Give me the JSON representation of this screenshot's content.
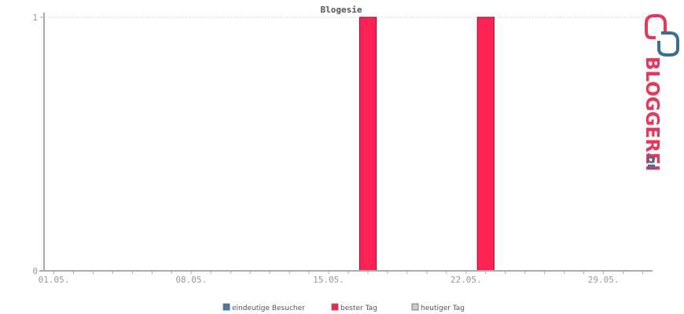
{
  "chart_data": {
    "type": "bar",
    "title": "Blogesie",
    "xlabel": "",
    "ylabel": "",
    "ylim": [
      0,
      1
    ],
    "y_ticks": [
      "0",
      "1"
    ],
    "x_tick_labels": [
      "01.05.",
      "08.05.",
      "15.05.",
      "22.05.",
      "29.05."
    ],
    "x_tick_days": [
      1,
      8,
      15,
      22,
      29
    ],
    "day_range": [
      0.5,
      31.5
    ],
    "grid": "dotted line at y=1",
    "legend_position": "bottom-center",
    "series": [
      {
        "name": "eindeutige Besucher",
        "color": "#3a7fb0",
        "points": []
      },
      {
        "name": "bester Tag",
        "color": "#ff2255",
        "points": [
          {
            "day": 17,
            "value": 1
          },
          {
            "day": 23,
            "value": 1
          }
        ]
      },
      {
        "name": "heutiger Tag",
        "color": "#cccccc",
        "points": []
      }
    ]
  },
  "logo": {
    "text": "BLOGGEREI",
    "suffix": ".DE",
    "primary_color": "#e8365b",
    "secondary_color": "#3b6e8f"
  }
}
